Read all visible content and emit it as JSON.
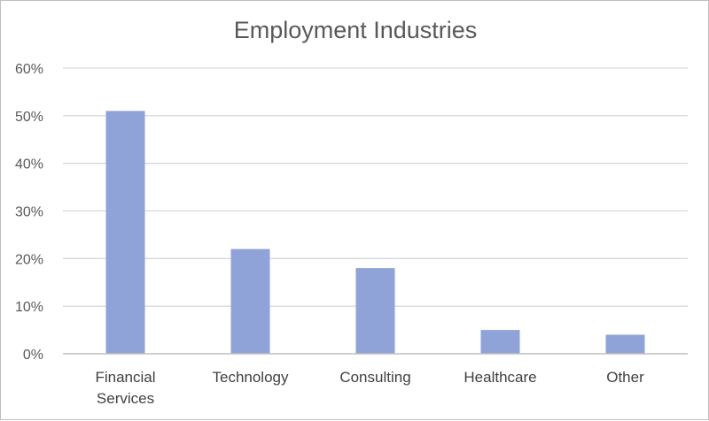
{
  "chart_data": {
    "type": "bar",
    "title": "Employment Industries",
    "xlabel": "",
    "ylabel": "",
    "categories": [
      [
        "Financial",
        "Services"
      ],
      [
        "Technology"
      ],
      [
        "Consulting"
      ],
      [
        "Healthcare"
      ],
      [
        "Other"
      ]
    ],
    "values": [
      0.51,
      0.22,
      0.18,
      0.05,
      0.04
    ],
    "ylim": [
      0,
      0.6
    ],
    "yticks": [
      "0%",
      "10%",
      "20%",
      "30%",
      "40%",
      "50%",
      "60%"
    ],
    "grid": true,
    "legend": "none",
    "colors": {
      "bar": "#8fa3d9",
      "gridline": "#d9d9d9",
      "axis": "#bfbfbf",
      "title": "#595959",
      "tick_label": "#595959"
    }
  }
}
